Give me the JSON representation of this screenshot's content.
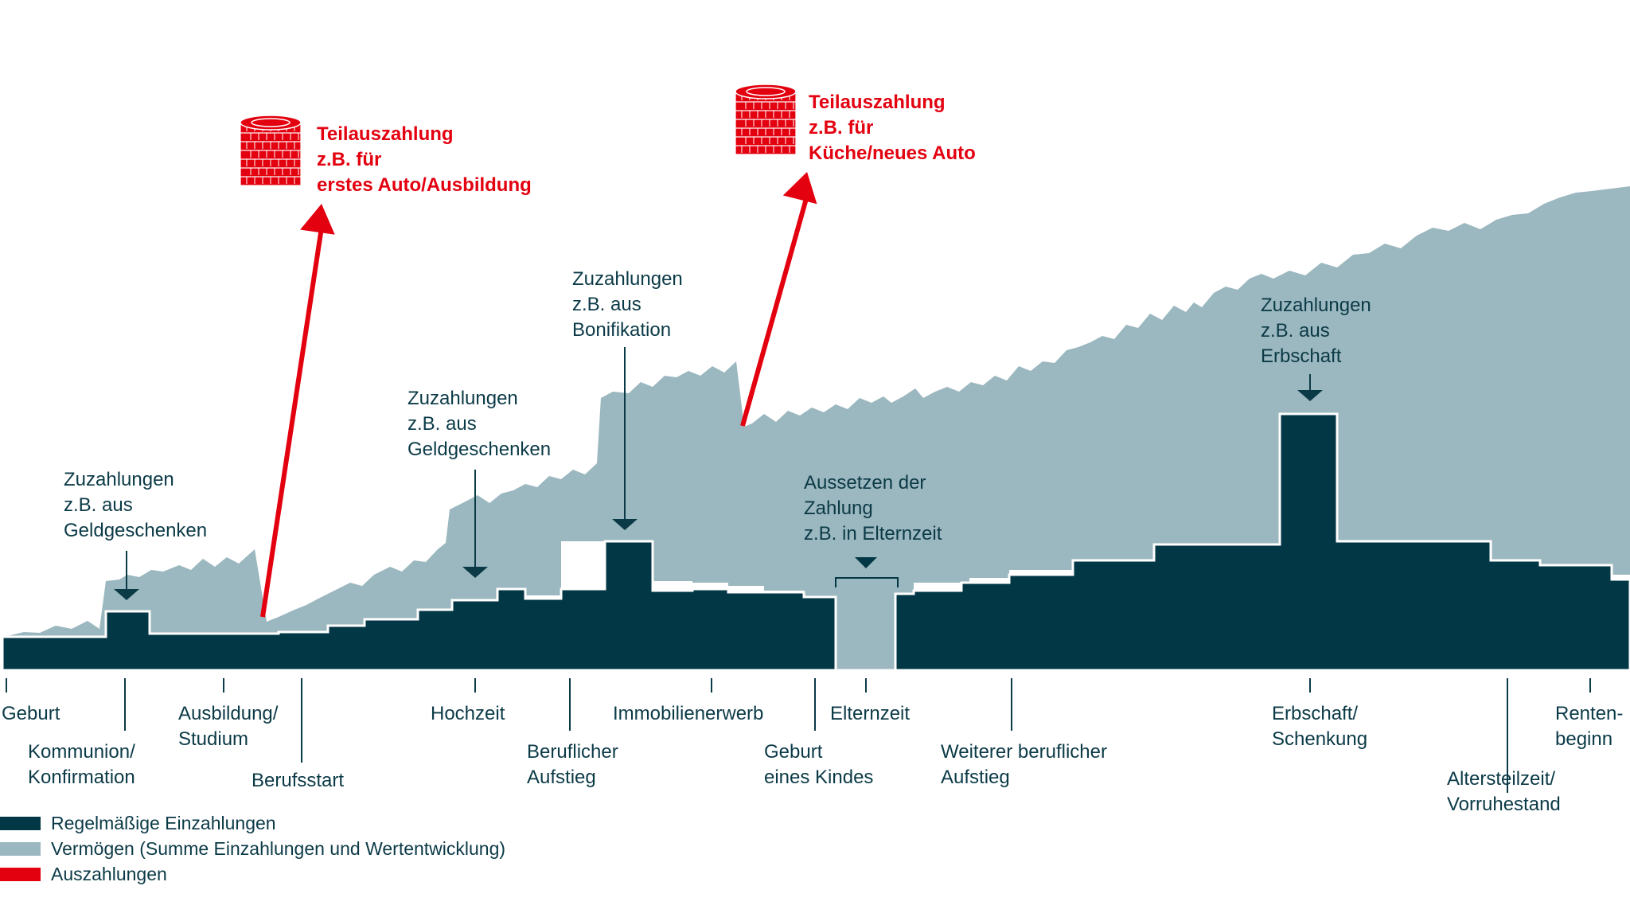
{
  "colors": {
    "regular": "#023745",
    "wealth": "#9bb7bf",
    "payout": "#e3000f",
    "text": "#0b3a47"
  },
  "legend": [
    {
      "label": "Regelmäßige Einzahlungen",
      "color": "#023745"
    },
    {
      "label": "Vermögen (Summe Einzahlungen und Wertentwicklung)",
      "color": "#9bb7bf"
    },
    {
      "label": "Auszahlungen",
      "color": "#e3000f"
    }
  ],
  "chart_data": {
    "type": "area",
    "title": "",
    "life_events": [
      {
        "lines": [
          "Geburt"
        ]
      },
      {
        "lines": [
          "Kommunion/",
          "Konfirmation"
        ]
      },
      {
        "lines": [
          "Ausbildung/",
          "Studium"
        ]
      },
      {
        "lines": [
          "Berufsstart"
        ]
      },
      {
        "lines": [
          "Hochzeit"
        ]
      },
      {
        "lines": [
          "Beruflicher",
          "Aufstieg"
        ]
      },
      {
        "lines": [
          "Immobilienerwerb"
        ]
      },
      {
        "lines": [
          "Geburt",
          "eines Kindes"
        ]
      },
      {
        "lines": [
          "Elternzeit"
        ]
      },
      {
        "lines": [
          "Weiterer beruflicher",
          "Aufstieg"
        ]
      },
      {
        "lines": [
          "Erbschaft/",
          "Schenkung"
        ]
      },
      {
        "lines": [
          "Altersteilzeit/",
          "Vorruhestand"
        ]
      },
      {
        "lines": [
          "Renten-",
          "beginn"
        ]
      }
    ],
    "annotations": [
      {
        "lines": [
          "Zuzahlungen",
          "z.B. aus",
          "Geldgeschenken"
        ]
      },
      {
        "lines": [
          "Zuzahlungen",
          "z.B. aus",
          "Geldgeschenken"
        ]
      },
      {
        "lines": [
          "Zuzahlungen",
          "z.B. aus",
          "Bonifikation"
        ]
      },
      {
        "lines": [
          "Aussetzen der",
          "Zahlung",
          "z.B. in Elternzeit"
        ]
      },
      {
        "lines": [
          "Zuzahlungen",
          "z.B. aus",
          "Erbschaft"
        ]
      }
    ],
    "payouts": [
      {
        "lines": [
          "Teilauszahlung",
          "z.B. für",
          "erstes Auto/Ausbildung"
        ]
      },
      {
        "lines": [
          "Teilauszahlung",
          "z.B. für",
          "Küche/neues Auto"
        ]
      }
    ]
  }
}
